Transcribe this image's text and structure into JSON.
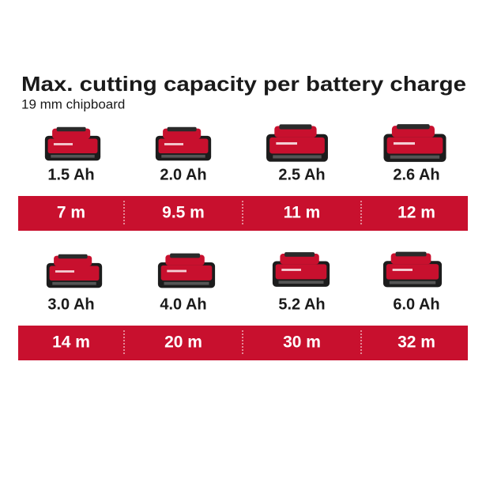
{
  "header": {
    "title": "Max. cutting capacity per battery charge",
    "subtitle": "19 mm chipboard"
  },
  "batteries": [
    {
      "capacity": "1.5 Ah",
      "cutting_length": "7 m"
    },
    {
      "capacity": "2.0 Ah",
      "cutting_length": "9.5 m"
    },
    {
      "capacity": "2.5 Ah",
      "cutting_length": "11 m"
    },
    {
      "capacity": "2.6 Ah",
      "cutting_length": "12 m"
    },
    {
      "capacity": "3.0 Ah",
      "cutting_length": "14 m"
    },
    {
      "capacity": "4.0 Ah",
      "cutting_length": "20 m"
    },
    {
      "capacity": "5.2 Ah",
      "cutting_length": "30 m"
    },
    {
      "capacity": "6.0 Ah",
      "cutting_length": "32 m"
    }
  ]
}
